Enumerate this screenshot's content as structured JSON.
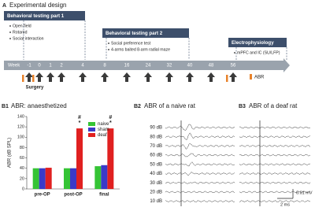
{
  "panel_a": {
    "label": "A",
    "title": "Experimental design",
    "stages": [
      {
        "title": "Behavioral testing part 1",
        "items": [
          "Open field",
          "Rotarod",
          "Social interaction"
        ]
      },
      {
        "title": "Behavioral testing part 2",
        "items": [
          "Social preference test",
          "4-arms baited 8-arm radial maze"
        ]
      },
      {
        "title": "Electrophysiology",
        "items": [
          "mPFC and IC (SU/LFP)"
        ]
      }
    ],
    "timeline_label": "Week",
    "weeks": [
      "-1",
      "0",
      "1",
      "2",
      "4",
      "8",
      "16",
      "24",
      "32",
      "40",
      "48",
      "56"
    ],
    "surgery": "Surgery",
    "legend": "ABR"
  },
  "chart_data": {
    "type": "bar",
    "panel_label": "B1",
    "title": "ABR: anaesthetized",
    "y_label": "ABR (dB SPL)",
    "categories": [
      "pre-OP",
      "post-OP",
      "final"
    ],
    "series": [
      {
        "name": "naive",
        "color": "#35c435",
        "values": [
          40,
          40,
          44
        ]
      },
      {
        "name": "sham",
        "color": "#3a3ac8",
        "values": [
          40,
          40,
          46
        ]
      },
      {
        "name": "deaf",
        "color": "#e02020",
        "values": [
          41,
          117,
          117
        ]
      }
    ],
    "ylim": [
      0,
      140
    ],
    "yticks": [
      0,
      20,
      40,
      60,
      80,
      100,
      120,
      140
    ],
    "annotations": [
      "#",
      "*"
    ],
    "legend_position": "upper-right"
  },
  "panel_b2": {
    "label": "B2",
    "title": "ABR of a naive rat",
    "levels": [
      "90 dB",
      "80 dB",
      "70 dB",
      "60 dB",
      "50 dB",
      "40 dB",
      "30 dB",
      "20 dB",
      "10 dB"
    ],
    "scale_amplitude": "0.01 mV",
    "scale_time": "2 ms"
  },
  "panel_b3": {
    "label": "B3",
    "title": "ABR of a deaf rat"
  }
}
